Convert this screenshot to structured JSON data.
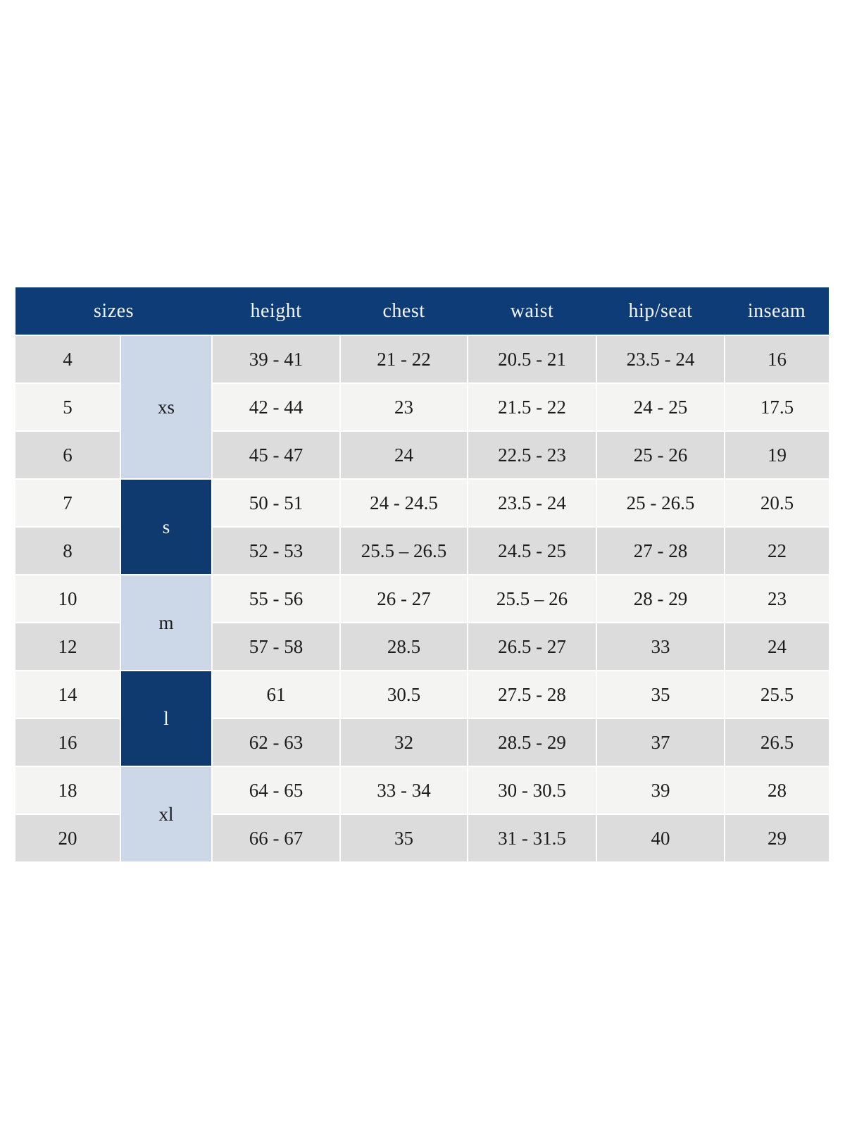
{
  "chart_data": {
    "type": "table",
    "columns": [
      "sizes",
      "height",
      "chest",
      "waist",
      "hip/seat",
      "inseam"
    ],
    "size_groups": [
      {
        "label": "xs",
        "rows": 3,
        "variant": "light"
      },
      {
        "label": "s",
        "rows": 2,
        "variant": "dark"
      },
      {
        "label": "m",
        "rows": 2,
        "variant": "light"
      },
      {
        "label": "l",
        "rows": 2,
        "variant": "dark"
      },
      {
        "label": "xl",
        "rows": 2,
        "variant": "light"
      }
    ],
    "rows": [
      {
        "size": "4",
        "height": "39 - 41",
        "chest": "21 - 22",
        "waist": "20.5 - 21",
        "hip_seat": "23.5 - 24",
        "inseam": "16"
      },
      {
        "size": "5",
        "height": "42 - 44",
        "chest": "23",
        "waist": "21.5 - 22",
        "hip_seat": "24 - 25",
        "inseam": "17.5"
      },
      {
        "size": "6",
        "height": "45 - 47",
        "chest": "24",
        "waist": "22.5 - 23",
        "hip_seat": "25 - 26",
        "inseam": "19"
      },
      {
        "size": "7",
        "height": "50 - 51",
        "chest": "24 - 24.5",
        "waist": "23.5 - 24",
        "hip_seat": "25 - 26.5",
        "inseam": "20.5"
      },
      {
        "size": "8",
        "height": "52 - 53",
        "chest": "25.5 – 26.5",
        "waist": "24.5 - 25",
        "hip_seat": "27 - 28",
        "inseam": "22"
      },
      {
        "size": "10",
        "height": "55 - 56",
        "chest": "26 - 27",
        "waist": "25.5 – 26",
        "hip_seat": "28 - 29",
        "inseam": "23"
      },
      {
        "size": "12",
        "height": "57 - 58",
        "chest": "28.5",
        "waist": "26.5 - 27",
        "hip_seat": "33",
        "inseam": "24"
      },
      {
        "size": "14",
        "height": "61",
        "chest": "30.5",
        "waist": "27.5 - 28",
        "hip_seat": "35",
        "inseam": "25.5"
      },
      {
        "size": "16",
        "height": "62 - 63",
        "chest": "32",
        "waist": "28.5 - 29",
        "hip_seat": "37",
        "inseam": "26.5"
      },
      {
        "size": "18",
        "height": "64 - 65",
        "chest": "33 - 34",
        "waist": "30 - 30.5",
        "hip_seat": "39",
        "inseam": "28"
      },
      {
        "size": "20",
        "height": "66 - 67",
        "chest": "35",
        "waist": "31 - 31.5",
        "hip_seat": "40",
        "inseam": "29"
      }
    ]
  },
  "colors": {
    "header_bg": "#0d3c77",
    "header_text": "#f4f5f7",
    "group_dark": "#0e3a70",
    "group_light": "#ccd8e7",
    "row_dark": "#dcdcdc",
    "row_light": "#f4f4f3",
    "cell_text": "#1c1c1c"
  }
}
